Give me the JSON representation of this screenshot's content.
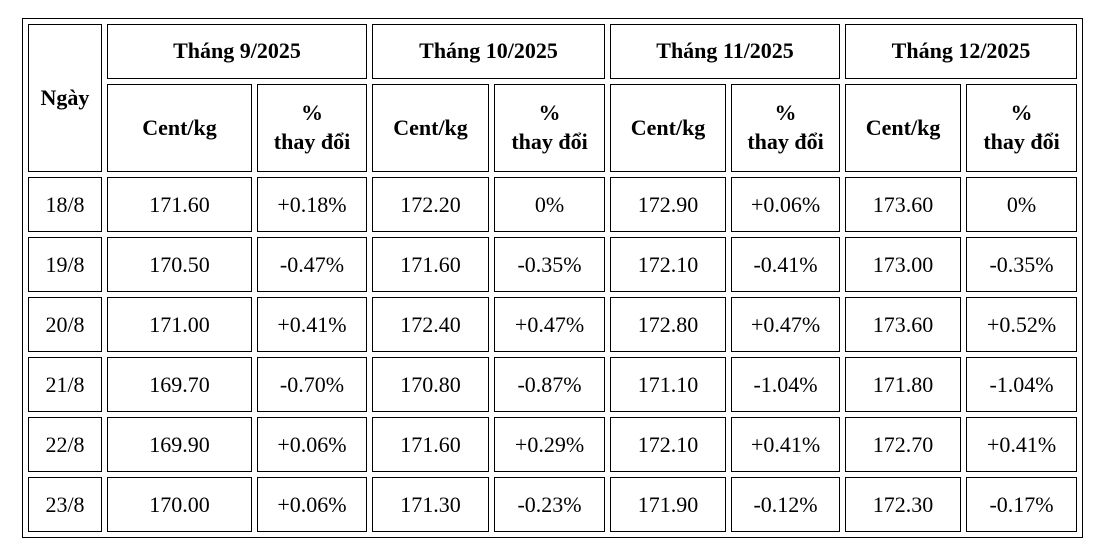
{
  "header": {
    "date_label": "Ngày",
    "months": [
      "Tháng 9/2025",
      "Tháng 10/2025",
      "Tháng 11/2025",
      "Tháng 12/2025"
    ],
    "price_label": "Cent/kg",
    "change_label": "%\nthay đổi"
  },
  "table": {
    "rows": [
      [
        "18/8",
        "171.60",
        "+0.18%",
        "172.20",
        "0%",
        "172.90",
        "+0.06%",
        "173.60",
        "0%"
      ],
      [
        "19/8",
        "170.50",
        "-0.47%",
        "171.60",
        "-0.35%",
        "172.10",
        "-0.41%",
        "173.00",
        "-0.35%"
      ],
      [
        "20/8",
        "171.00",
        "+0.41%",
        "172.40",
        "+0.47%",
        "172.80",
        "+0.47%",
        "173.60",
        "+0.52%"
      ],
      [
        "21/8",
        "169.70",
        "-0.70%",
        "170.80",
        "-0.87%",
        "171.10",
        "-1.04%",
        "171.80",
        "-1.04%"
      ],
      [
        "22/8",
        "169.90",
        "+0.06%",
        "171.60",
        "+0.29%",
        "172.10",
        "+0.41%",
        "172.70",
        "+0.41%"
      ],
      [
        "23/8",
        "170.00",
        "+0.06%",
        "171.30",
        "-0.23%",
        "171.90",
        "-0.12%",
        "172.30",
        "-0.17%"
      ]
    ]
  }
}
